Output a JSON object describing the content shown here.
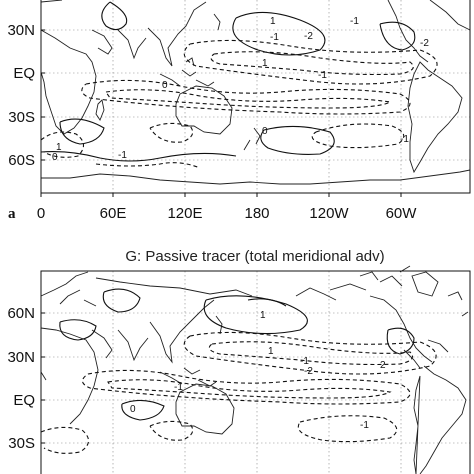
{
  "panel_a": {
    "letter": "a",
    "lat_labels": [
      "30N",
      "EQ",
      "30S",
      "60S"
    ],
    "lon_labels": [
      "0",
      "60E",
      "120E",
      "180",
      "120W",
      "60W"
    ],
    "contour_labels": [
      "1",
      "-1",
      "-1",
      "-2",
      "-2",
      "-1",
      "1",
      "0",
      "0",
      "-1",
      "-1",
      "1",
      "0"
    ]
  },
  "panel_g": {
    "title": "G: Passive tracer (total meridional adv)",
    "lat_labels": [
      "60N",
      "30N",
      "EQ",
      "30S"
    ],
    "contour_labels": [
      "1",
      "-1",
      "-2",
      "2",
      "-1",
      "1",
      "-1",
      "0"
    ]
  }
}
